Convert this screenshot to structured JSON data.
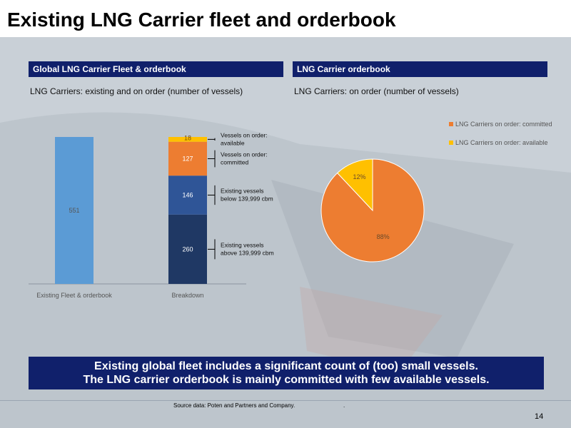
{
  "slide": {
    "title": "Existing LNG Carrier fleet and orderbook",
    "left_panel_header": "Global LNG Carrier Fleet & orderbook",
    "right_panel_header": "LNG Carrier orderbook",
    "left_subtitle": "LNG Carriers: existing and on order (number of vessels)",
    "right_subtitle": "LNG Carriers: on order (number of vessels)",
    "summary_line1": "Existing global fleet includes a significant count of (too) small vessels.",
    "summary_line2": "The LNG carrier orderbook is mainly committed with few available vessels.",
    "source": "Source data: Poten and Partners and Company.",
    "source_trailing": ".",
    "page_number": "14"
  },
  "colors": {
    "header_bg": "#10206b",
    "fleet_bar": "#5b9bd5",
    "above_139999": "#1f3864",
    "below_139999": "#2f5597",
    "committed": "#ed7d31",
    "available": "#ffc000"
  },
  "chart_data": [
    {
      "type": "bar",
      "stacked": true,
      "categories": [
        "Existing Fleet & orderbook",
        "Breakdown"
      ],
      "series": [
        {
          "name": "Existing Fleet & orderbook",
          "values": [
            551,
            null
          ],
          "color": "#5b9bd5"
        },
        {
          "name": "Existing vessels above 139,999 cbm",
          "values": [
            null,
            260
          ],
          "color": "#1f3864"
        },
        {
          "name": "Existing vessels below 139,999 cbm",
          "values": [
            null,
            146
          ],
          "color": "#2f5597"
        },
        {
          "name": "Vessels on order: committed",
          "values": [
            null,
            127
          ],
          "color": "#ed7d31"
        },
        {
          "name": "Vessels on order: available",
          "values": [
            null,
            18
          ],
          "color": "#ffc000"
        }
      ],
      "data_labels": [
        "551",
        "260",
        "146",
        "127",
        "18"
      ],
      "annotations": [
        {
          "line1": "Vessels on order:",
          "line2": "available"
        },
        {
          "line1": "Vessels on order:",
          "line2": "committed"
        },
        {
          "line1": "Existing vessels",
          "line2": "below 139,999 cbm"
        },
        {
          "line1": "Existing vessels",
          "line2": "above 139,999 cbm"
        }
      ],
      "ylim": [
        0,
        551
      ],
      "grid": false
    },
    {
      "type": "pie",
      "labels": [
        "LNG Carriers on order: committed",
        "LNG Carriers on order: available"
      ],
      "values": [
        88,
        12
      ],
      "value_labels": [
        "88%",
        "12%"
      ],
      "colors": [
        "#ed7d31",
        "#ffc000"
      ],
      "legend_position": "top-right"
    }
  ]
}
